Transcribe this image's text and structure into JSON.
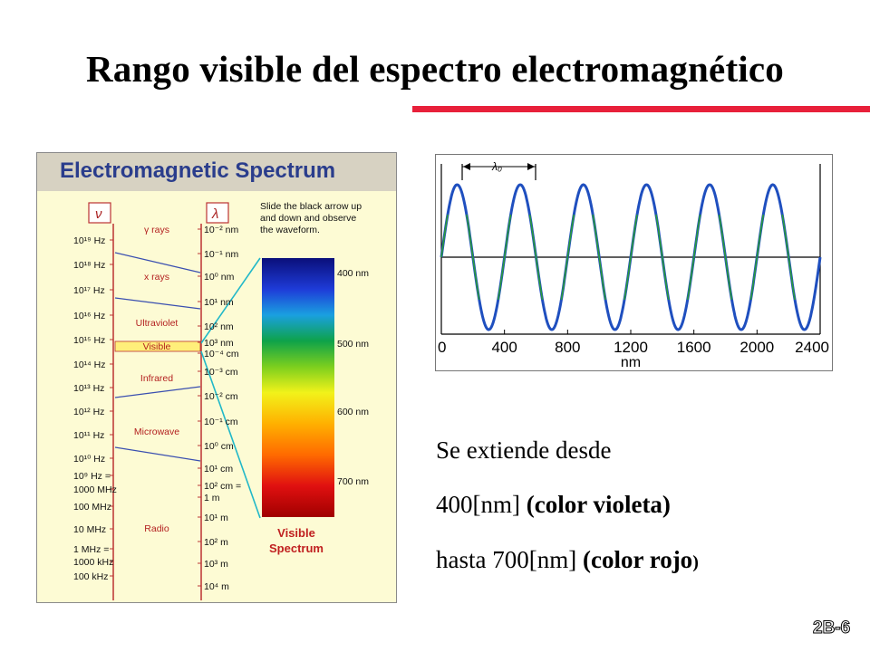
{
  "slide": {
    "title": "Rango visible del espectro electromagnético",
    "number": "2B-6",
    "accent_color": "#e8203a"
  },
  "spectrum_figure": {
    "header": "Electromagnetic Spectrum",
    "nu_symbol": "ν",
    "lambda_symbol": "λ",
    "instruction": [
      "Slide the black arrow up",
      "and down and observe",
      "the waveform."
    ],
    "frequencies": [
      "10¹⁹ Hz",
      "10¹⁸ Hz",
      "10¹⁷ Hz",
      "10¹⁶ Hz",
      "10¹⁵ Hz",
      "10¹⁴ Hz",
      "10¹³ Hz",
      "10¹² Hz",
      "10¹¹ Hz",
      "10¹⁰ Hz",
      "10⁹ Hz =",
      "1000 MHz",
      "100 MHz",
      "10 MHz",
      "1 MHz =",
      "1000 kHz",
      "100 kHz"
    ],
    "wavelengths": [
      "10⁻² nm",
      "10⁻¹ nm",
      "10⁰ nm",
      "10¹ nm",
      "10² nm",
      "10³ nm",
      "10⁻⁴ cm",
      "10⁻³ cm",
      "10⁻² cm",
      "10⁻¹ cm",
      "10⁰ cm",
      "10¹ cm",
      "10² cm =",
      "1 m",
      "10¹ m",
      "10² m",
      "10³ m",
      "10⁴ m"
    ],
    "regions": [
      "γ rays",
      "x rays",
      "Ultraviolet",
      "Visible",
      "Infrared",
      "Microwave",
      "Radio"
    ],
    "visible_labels": [
      "400 nm",
      "500 nm",
      "600 nm",
      "700 nm"
    ],
    "visible_caption": [
      "Visible",
      "Spectrum"
    ]
  },
  "wave_figure": {
    "lambda_label": "λ₀",
    "x_ticks": [
      "0",
      "400",
      "800",
      "1200",
      "1600",
      "2000",
      "2400"
    ],
    "xlabel": "nm",
    "wave_color": "#1f4fbf",
    "mid_color": "#2a9a3a"
  },
  "caption": {
    "line1": "Se extiende desde",
    "line2_plain": "400[nm] ",
    "line2_bold": "(color violeta)",
    "line3_plain": "hasta 700[nm] ",
    "line3_bold": "(color rojo",
    "line3_end": ")"
  }
}
